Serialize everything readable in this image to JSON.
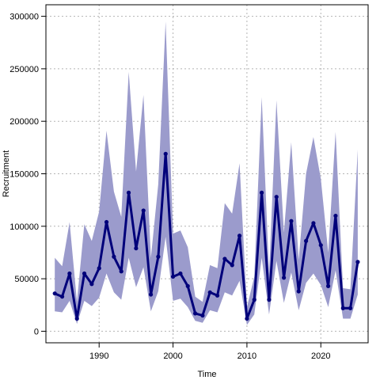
{
  "chart_data": {
    "type": "line",
    "title": "",
    "xlabel": "Time",
    "ylabel": "Recruitment",
    "xlim": [
      1982.8,
      2026.4
    ],
    "ylim": [
      -11000,
      311000
    ],
    "x_ticks": [
      1990,
      2000,
      2010,
      2020
    ],
    "x_tick_labels": [
      "1990",
      "2000",
      "2010",
      "2020"
    ],
    "y_ticks": [
      0,
      50000,
      100000,
      150000,
      200000,
      250000,
      300000
    ],
    "y_tick_labels": [
      "0",
      "50000",
      "100000",
      "150000",
      "200000",
      "250000",
      "300000"
    ],
    "grid": true,
    "colors": {
      "line": "#00007a",
      "band": "#9b9bcc",
      "grid": "#b4b4b4",
      "frame": "#000000"
    },
    "x": [
      1984,
      1985,
      1986,
      1987,
      1988,
      1989,
      1990,
      1991,
      1992,
      1993,
      1994,
      1995,
      1996,
      1997,
      1998,
      1999,
      2000,
      2001,
      2002,
      2003,
      2004,
      2005,
      2006,
      2007,
      2008,
      2009,
      2010,
      2011,
      2012,
      2013,
      2014,
      2015,
      2016,
      2017,
      2018,
      2019,
      2020,
      2021,
      2022,
      2023,
      2024,
      2025
    ],
    "series": [
      {
        "values": [
          36000,
          33000,
          55000,
          12000,
          55000,
          45000,
          60000,
          104000,
          71000,
          57000,
          132000,
          79000,
          115000,
          35000,
          71000,
          169000,
          52000,
          55000,
          43000,
          17000,
          15000,
          37000,
          34000,
          69000,
          63000,
          91000,
          12000,
          30000,
          132000,
          30000,
          128000,
          51000,
          105000,
          38000,
          86000,
          103000,
          82000,
          43000,
          110000,
          22000,
          22000,
          66000
        ],
        "upper": [
          70000,
          62000,
          104000,
          28000,
          102000,
          86000,
          114000,
          191000,
          133000,
          109000,
          247000,
          152000,
          225000,
          70000,
          140000,
          295000,
          93000,
          96000,
          80000,
          33000,
          28000,
          63000,
          60000,
          122000,
          112000,
          160000,
          23000,
          52000,
          223000,
          55000,
          220000,
          94000,
          180000,
          68000,
          150000,
          185000,
          145000,
          75000,
          190000,
          41000,
          40000,
          173000
        ],
        "lower": [
          19000,
          18000,
          29000,
          7000,
          29000,
          24000,
          32000,
          55000,
          37000,
          30000,
          70000,
          42000,
          61000,
          19000,
          38000,
          90000,
          29000,
          31000,
          23000,
          10000,
          8000,
          20000,
          18000,
          37000,
          34000,
          48000,
          6000,
          16000,
          70000,
          16000,
          67000,
          27000,
          56000,
          20000,
          46000,
          55000,
          44000,
          23000,
          58000,
          12000,
          12000,
          35000
        ]
      }
    ]
  }
}
